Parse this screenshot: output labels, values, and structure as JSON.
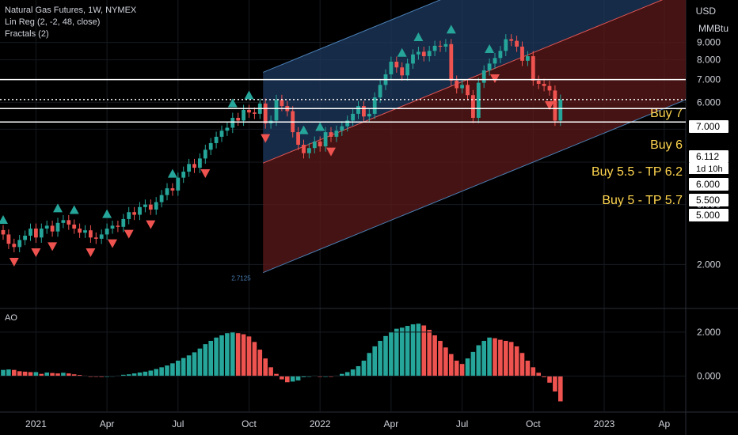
{
  "header": {
    "title": "Natural Gas Futures, 1W, NYMEX",
    "indicator_1": "Lin Reg (2, -2, 48, close)",
    "indicator_2": "Fractals (2)",
    "ao_label": "AO"
  },
  "axis": {
    "currency": "USD",
    "unit": "MMBtu",
    "x_ticks": [
      "2021",
      "Apr",
      "Jul",
      "Oct",
      "2022",
      "Apr",
      "Jul",
      "Oct",
      "2023",
      "Ap"
    ]
  },
  "price_tags": {
    "current": "6.112",
    "countdown": "1d 10h",
    "levels": [
      "7.000",
      "6.000",
      "5.500",
      "5.000"
    ]
  },
  "annotations": [
    "Buy 7",
    "Buy 6",
    "Buy 5.5 - TP 6.2",
    "Buy 5 - TP 5.7"
  ],
  "regression_label": "2.7125",
  "colors": {
    "up": "#26a69a",
    "down": "#ef5350",
    "bg": "#000000",
    "channel_upper": "#1e3a5f",
    "channel_lower": "#5c1a1a",
    "annotation": "#ffd54f"
  },
  "chart_data": [
    {
      "type": "candlestick",
      "ylim": [
        1.5,
        12
      ],
      "y_ticks": [
        2,
        3,
        4,
        5,
        6,
        7,
        8,
        9
      ],
      "y_tick_labels": [
        "2.000",
        "3.000",
        "4.000",
        "5.000",
        "6.000",
        "7.000",
        "8.000",
        "9.000"
      ],
      "horizontal_lines": [
        {
          "label": "Buy 7",
          "value": 7.0,
          "style": "solid"
        },
        {
          "label": "Buy 6",
          "value": 6.112,
          "style": "dotted"
        },
        {
          "label": "Buy 5.5 - TP 6.2",
          "value": 5.75,
          "style": "solid"
        },
        {
          "label": "Buy 5 - TP 5.7",
          "value": 5.25,
          "style": "solid"
        }
      ],
      "channel": {
        "start_week": 48,
        "end_week": 97,
        "start_mid": 4.0,
        "end_mid": 8.4,
        "half_width": 2.2
      },
      "closes": [
        2.45,
        2.3,
        2.25,
        2.36,
        2.43,
        2.55,
        2.4,
        2.55,
        2.6,
        2.5,
        2.65,
        2.7,
        2.62,
        2.55,
        2.48,
        2.52,
        2.4,
        2.38,
        2.45,
        2.55,
        2.6,
        2.58,
        2.72,
        2.85,
        2.8,
        2.95,
        3.0,
        2.9,
        3.05,
        3.2,
        3.35,
        3.3,
        3.6,
        3.75,
        3.95,
        3.85,
        4.1,
        4.35,
        4.55,
        4.75,
        4.95,
        5.05,
        5.4,
        5.3,
        5.7,
        5.6,
        5.55,
        5.95,
        5.2,
        5.3,
        6.1,
        5.85,
        5.65,
        4.9,
        4.5,
        4.25,
        4.4,
        4.6,
        4.45,
        4.9,
        4.75,
        4.95,
        5.1,
        5.3,
        5.55,
        5.85,
        5.45,
        5.55,
        6.2,
        6.75,
        7.25,
        7.9,
        7.6,
        7.2,
        7.8,
        8.3,
        8.45,
        8.2,
        8.5,
        8.8,
        8.75,
        8.9,
        6.95,
        6.6,
        6.75,
        6.3,
        5.4,
        6.85,
        7.45,
        7.8,
        8.1,
        8.5,
        9.2,
        9.1,
        8.75,
        7.95,
        8.2,
        6.95,
        6.8,
        6.7,
        6.5,
        5.3,
        6.11
      ],
      "ao": [
        0.28,
        0.3,
        0.28,
        0.22,
        0.2,
        0.18,
        0.18,
        0.1,
        0.16,
        0.14,
        0.12,
        0.15,
        0.12,
        0.08,
        0.05,
        0.02,
        0.0,
        -0.02,
        -0.04,
        -0.03,
        0.01,
        0.02,
        0.06,
        0.08,
        0.12,
        0.16,
        0.2,
        0.25,
        0.32,
        0.4,
        0.48,
        0.58,
        0.7,
        0.82,
        0.94,
        1.08,
        1.25,
        1.45,
        1.6,
        1.75,
        1.85,
        1.95,
        2.0,
        1.95,
        1.9,
        1.8,
        1.55,
        1.2,
        0.8,
        0.4,
        0.1,
        -0.15,
        -0.28,
        -0.25,
        -0.2,
        -0.05,
        0.0,
        0.02,
        -0.02,
        0.0,
        -0.02,
        0.02,
        0.1,
        0.18,
        0.3,
        0.45,
        0.7,
        1.05,
        1.35,
        1.6,
        1.82,
        2.0,
        2.15,
        2.2,
        2.28,
        2.35,
        2.38,
        2.3,
        2.1,
        1.85,
        1.6,
        1.3,
        1.0,
        0.7,
        0.55,
        0.8,
        1.1,
        1.4,
        1.6,
        1.75,
        1.72,
        1.65,
        1.6,
        1.55,
        1.35,
        1.05,
        0.7,
        0.4,
        0.15,
        -0.05,
        -0.3,
        -0.7,
        -1.15
      ],
      "ao_ylim": [
        -1.6,
        3.0
      ],
      "ao_ticks": [
        0,
        2
      ],
      "ao_tick_labels": [
        "0.000",
        "2.000"
      ],
      "fractals_up": [
        0,
        10,
        13,
        19,
        31,
        42,
        45,
        55,
        58,
        73,
        76,
        82,
        89
      ],
      "fractals_down": [
        2,
        6,
        9,
        16,
        20,
        23,
        27,
        37,
        48,
        60,
        90,
        100
      ],
      "x_tick_weeks": [
        6,
        19,
        32,
        45,
        58,
        71,
        84,
        97,
        110,
        121
      ]
    }
  ]
}
